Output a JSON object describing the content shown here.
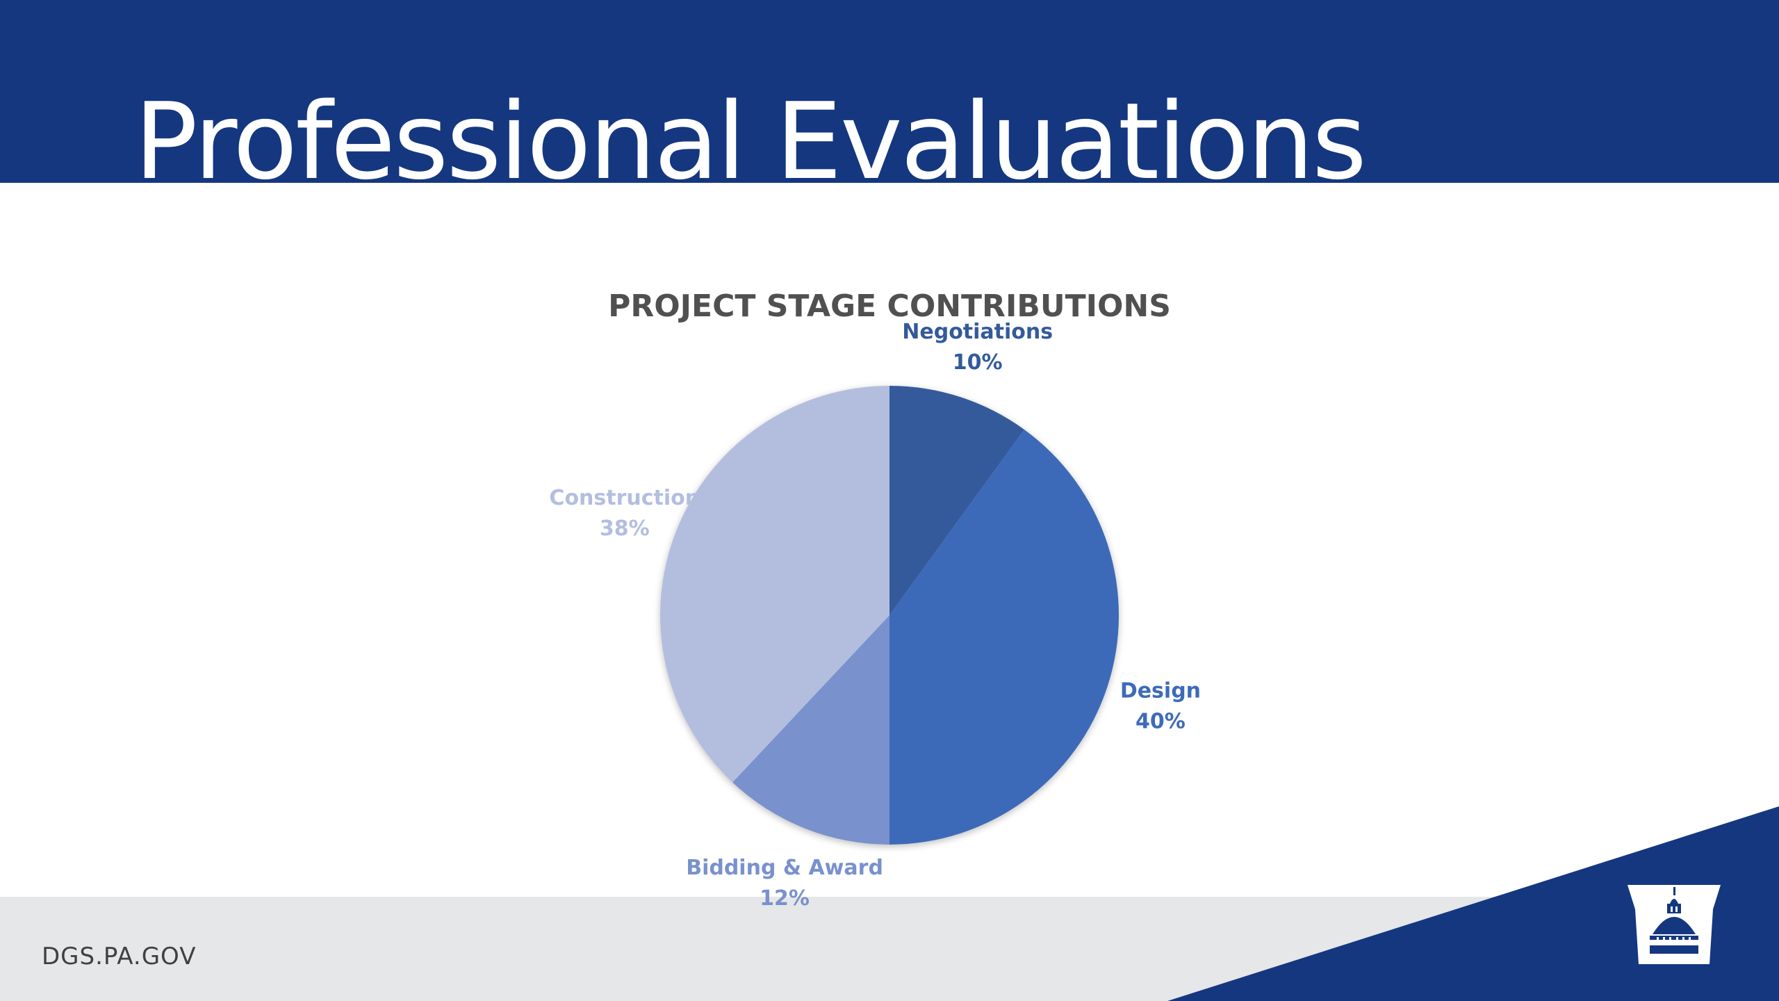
{
  "slide": {
    "title": "Professional Evaluations",
    "footer_url": "DGS.PA.GOV",
    "logo": "keystone-capitol-dome-logo"
  },
  "colors": {
    "header": "#143780",
    "footer": "#e6e7e9",
    "wedge": "#143780"
  },
  "chart_data": {
    "type": "pie",
    "title": "PROJECT STAGE CONTRIBUTIONS",
    "slices": [
      {
        "label": "Negotiations",
        "value": 10,
        "display": "10%",
        "color": "#345a9b"
      },
      {
        "label": "Design",
        "value": 40,
        "display": "40%",
        "color": "#3d6bb8"
      },
      {
        "label": "Bidding & Award",
        "value": 12,
        "display": "12%",
        "color": "#7991cd"
      },
      {
        "label": "Construction",
        "value": 38,
        "display": "38%",
        "color": "#b3bedf"
      }
    ]
  }
}
